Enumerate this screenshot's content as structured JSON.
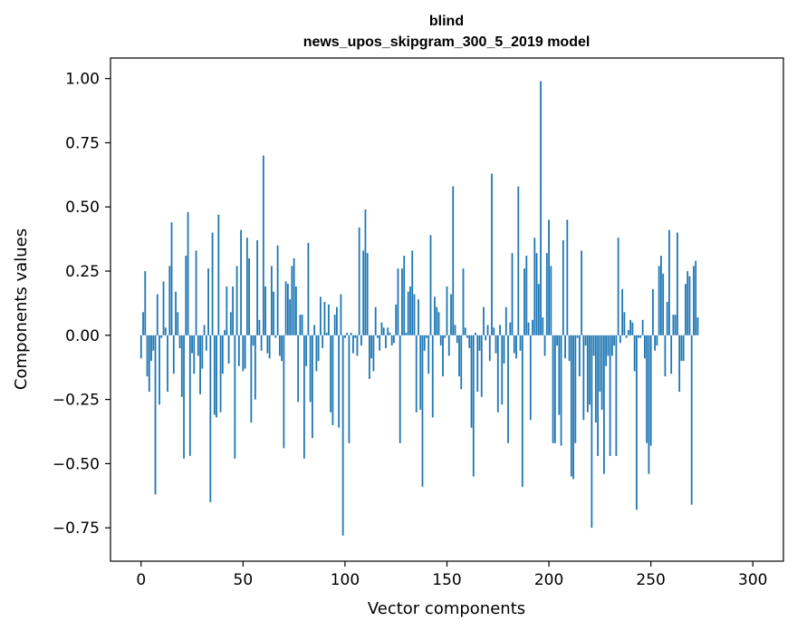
{
  "chart_data": {
    "type": "bar",
    "title_line1": "blind",
    "title_line2": "news_upos_skipgram_300_5_2019 model",
    "xlabel": "Vector components",
    "ylabel": "Components values",
    "xlim": [
      -15,
      315
    ],
    "ylim": [
      -0.88,
      1.08
    ],
    "xticks": [
      0,
      50,
      100,
      150,
      200,
      250,
      300
    ],
    "xtick_labels": [
      "0",
      "50",
      "100",
      "150",
      "200",
      "250",
      "300"
    ],
    "yticks": [
      1.0,
      0.75,
      0.5,
      0.25,
      0.0,
      -0.25,
      -0.5,
      -0.75
    ],
    "ytick_labels": [
      "1.00",
      "0.75",
      "0.50",
      "0.25",
      "0.00",
      "−0.25",
      "−0.50",
      "−0.75"
    ],
    "bar_color": "#1f77b4",
    "values": [
      -0.09,
      0.09,
      0.25,
      -0.16,
      -0.22,
      -0.1,
      -0.06,
      -0.62,
      0.16,
      -0.27,
      -0.01,
      0.21,
      0.03,
      -0.22,
      0.27,
      0.44,
      -0.15,
      0.17,
      0.09,
      -0.05,
      -0.24,
      -0.48,
      0.31,
      0.48,
      -0.47,
      -0.07,
      -0.15,
      0.33,
      -0.08,
      -0.23,
      -0.13,
      0.04,
      -0.06,
      0.26,
      -0.65,
      0.4,
      -0.31,
      -0.32,
      0.47,
      -0.3,
      -0.15,
      0.02,
      0.19,
      -0.11,
      0.09,
      0.19,
      -0.48,
      0.27,
      -0.12,
      0.41,
      -0.14,
      -0.13,
      0.38,
      0.3,
      -0.34,
      -0.04,
      -0.25,
      0.37,
      0.06,
      -0.06,
      0.7,
      0.19,
      -0.07,
      -0.09,
      0.27,
      0.17,
      -0.01,
      0.35,
      -0.08,
      -0.1,
      -0.44,
      0.21,
      0.2,
      0.14,
      0.27,
      0.3,
      0.19,
      -0.26,
      0.08,
      0.08,
      -0.48,
      -0.12,
      0.36,
      -0.26,
      -0.4,
      0.04,
      -0.14,
      -0.1,
      0.15,
      -0.05,
      0.13,
      0.01,
      0.12,
      -0.3,
      -0.35,
      0.08,
      0.11,
      -0.36,
      0.16,
      -0.78,
      -0.01,
      0.01,
      -0.42,
      0.01,
      -0.07,
      -0.01,
      -0.08,
      0.42,
      -0.04,
      0.33,
      0.49,
      0.32,
      -0.17,
      -0.09,
      -0.14,
      0.11,
      -0.01,
      -0.06,
      0.05,
      0.03,
      -0.05,
      0.03,
      0.01,
      -0.04,
      -0.03,
      0.12,
      0.26,
      -0.42,
      0.26,
      0.31,
      0.01,
      0.17,
      0.19,
      0.33,
      0.16,
      -0.3,
      0.14,
      -0.29,
      -0.59,
      -0.06,
      -0.01,
      -0.15,
      0.39,
      -0.32,
      0.15,
      0.11,
      0.09,
      -0.04,
      -0.16,
      -0.01,
      0.19,
      -0.08,
      0.16,
      0.58,
      0.04,
      -0.03,
      -0.16,
      -0.21,
      0.26,
      0.03,
      -0.01,
      -0.05,
      -0.36,
      -0.55,
      0.01,
      -0.22,
      -0.06,
      -0.24,
      0.11,
      -0.02,
      0.04,
      -0.1,
      0.63,
      0.03,
      -0.07,
      -0.3,
      0.04,
      -0.27,
      -0.11,
      0.11,
      -0.42,
      0.05,
      0.32,
      -0.07,
      -0.09,
      0.58,
      -0.06,
      -0.59,
      0.26,
      0.31,
      0.05,
      -0.33,
      0.06,
      0.38,
      0.32,
      0.2,
      0.99,
      0.07,
      -0.08,
      0.32,
      0.45,
      0.27,
      -0.42,
      -0.42,
      -0.04,
      -0.31,
      -0.43,
      0.37,
      -0.09,
      0.45,
      -0.1,
      -0.55,
      -0.56,
      -0.42,
      -0.01,
      -0.16,
      0.33,
      -0.33,
      -0.04,
      -0.3,
      -0.27,
      -0.75,
      -0.08,
      -0.34,
      -0.47,
      -0.22,
      -0.29,
      -0.54,
      -0.12,
      -0.08,
      -0.47,
      -0.08,
      -0.04,
      -0.47,
      0.38,
      -0.03,
      0.18,
      0.09,
      -0.01,
      0.02,
      0.06,
      0.05,
      -0.14,
      -0.68,
      -0.01,
      -0.01,
      0.06,
      -0.09,
      -0.42,
      -0.54,
      -0.43,
      0.18,
      -0.06,
      -0.04,
      0.27,
      0.31,
      0.24,
      -0.16,
      0.13,
      0.41,
      -0.15,
      0.08,
      0.08,
      0.4,
      -0.22,
      -0.1,
      -0.1,
      0.2,
      0.25,
      0.23,
      -0.66,
      0.27,
      0.29,
      0.07
    ]
  }
}
